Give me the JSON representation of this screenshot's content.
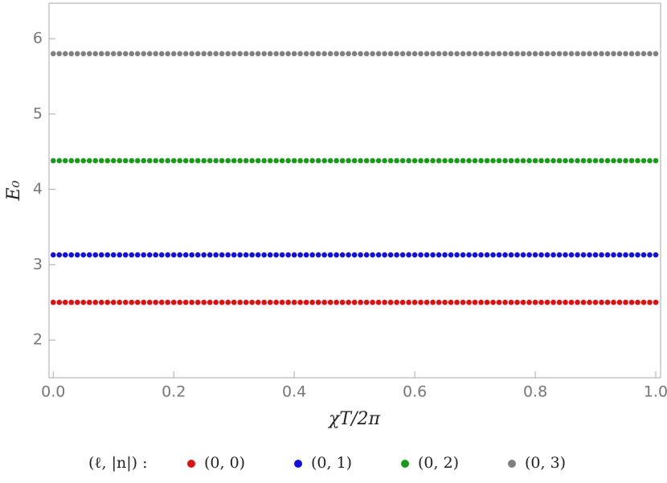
{
  "chart_data": {
    "type": "scatter",
    "xlabel": "χT/2π",
    "ylabel": "E₀",
    "legend_title": "(ℓ, |n|) :",
    "legend_position": "bottom",
    "xlim": [
      -0.007,
      1.008
    ],
    "ylim": [
      1.5,
      6.47
    ],
    "xticks": [
      {
        "value": 0,
        "label": "0.0"
      },
      0.2,
      0.4,
      0.6,
      0.8,
      {
        "value": 1,
        "label": "1.0"
      }
    ],
    "yticks": [
      2,
      3,
      4,
      5,
      6
    ],
    "x": [
      0,
      0.01,
      0.02,
      0.03,
      0.04,
      0.05,
      0.06,
      0.07,
      0.08,
      0.09,
      0.1,
      0.11,
      0.12,
      0.13,
      0.14,
      0.15,
      0.16,
      0.17,
      0.18,
      0.19,
      0.2,
      0.21,
      0.22,
      0.23,
      0.24,
      0.25,
      0.26,
      0.27,
      0.28,
      0.29,
      0.3,
      0.31,
      0.32,
      0.33,
      0.34,
      0.35,
      0.36,
      0.37,
      0.38,
      0.39,
      0.4,
      0.41,
      0.42,
      0.43,
      0.44,
      0.45,
      0.46,
      0.47,
      0.48,
      0.49,
      0.5,
      0.51,
      0.52,
      0.53,
      0.54,
      0.55,
      0.56,
      0.57,
      0.58,
      0.59,
      0.6,
      0.61,
      0.62,
      0.63,
      0.64,
      0.65,
      0.66,
      0.67,
      0.68,
      0.69,
      0.7,
      0.71,
      0.72,
      0.73,
      0.74,
      0.75,
      0.76,
      0.77,
      0.78,
      0.79,
      0.8,
      0.81,
      0.82,
      0.83,
      0.84,
      0.85,
      0.86,
      0.87,
      0.88,
      0.89,
      0.9,
      0.91,
      0.92,
      0.93,
      0.94,
      0.95,
      0.96,
      0.97,
      0.98,
      0.99,
      1
    ],
    "series": [
      {
        "name": "(0, 0)",
        "color": "#e01010",
        "values": [
          2.5,
          2.5,
          2.5,
          2.5,
          2.5,
          2.5,
          2.5,
          2.5,
          2.5,
          2.5,
          2.5,
          2.5,
          2.5,
          2.5,
          2.5,
          2.5,
          2.5,
          2.5,
          2.5,
          2.5,
          2.5,
          2.5,
          2.5,
          2.5,
          2.5,
          2.5,
          2.5,
          2.5,
          2.5,
          2.5,
          2.5,
          2.5,
          2.5,
          2.5,
          2.5,
          2.5,
          2.5,
          2.5,
          2.5,
          2.5,
          2.5,
          2.5,
          2.5,
          2.5,
          2.5,
          2.5,
          2.5,
          2.5,
          2.5,
          2.5,
          2.5,
          2.5,
          2.5,
          2.5,
          2.5,
          2.5,
          2.5,
          2.5,
          2.5,
          2.5,
          2.5,
          2.5,
          2.5,
          2.5,
          2.5,
          2.5,
          2.5,
          2.5,
          2.5,
          2.5,
          2.5,
          2.5,
          2.5,
          2.5,
          2.5,
          2.5,
          2.5,
          2.5,
          2.5,
          2.5,
          2.5,
          2.5,
          2.5,
          2.5,
          2.5,
          2.5,
          2.5,
          2.5,
          2.5,
          2.5,
          2.5,
          2.5,
          2.5,
          2.5,
          2.5,
          2.5,
          2.5,
          2.5,
          2.5,
          2.5,
          2.5
        ]
      },
      {
        "name": "(0, 1)",
        "color": "#1010e0",
        "values": [
          3.13,
          3.13,
          3.13,
          3.13,
          3.13,
          3.13,
          3.13,
          3.13,
          3.13,
          3.13,
          3.13,
          3.13,
          3.13,
          3.13,
          3.13,
          3.13,
          3.13,
          3.13,
          3.13,
          3.13,
          3.13,
          3.13,
          3.13,
          3.13,
          3.13,
          3.13,
          3.13,
          3.13,
          3.13,
          3.13,
          3.13,
          3.13,
          3.13,
          3.13,
          3.13,
          3.13,
          3.13,
          3.13,
          3.13,
          3.13,
          3.13,
          3.13,
          3.13,
          3.13,
          3.13,
          3.13,
          3.13,
          3.13,
          3.13,
          3.13,
          3.13,
          3.13,
          3.13,
          3.13,
          3.13,
          3.13,
          3.13,
          3.13,
          3.13,
          3.13,
          3.13,
          3.13,
          3.13,
          3.13,
          3.13,
          3.13,
          3.13,
          3.13,
          3.13,
          3.13,
          3.13,
          3.13,
          3.13,
          3.13,
          3.13,
          3.13,
          3.13,
          3.13,
          3.13,
          3.13,
          3.13,
          3.13,
          3.13,
          3.13,
          3.13,
          3.13,
          3.13,
          3.13,
          3.13,
          3.13,
          3.13,
          3.13,
          3.13,
          3.13,
          3.13,
          3.13,
          3.13,
          3.13,
          3.13,
          3.13,
          3.13
        ]
      },
      {
        "name": "(0, 2)",
        "color": "#1a9a1a",
        "values": [
          4.38,
          4.38,
          4.38,
          4.38,
          4.38,
          4.38,
          4.38,
          4.38,
          4.38,
          4.38,
          4.38,
          4.38,
          4.38,
          4.38,
          4.38,
          4.38,
          4.38,
          4.38,
          4.38,
          4.38,
          4.38,
          4.38,
          4.38,
          4.38,
          4.38,
          4.38,
          4.38,
          4.38,
          4.38,
          4.38,
          4.38,
          4.38,
          4.38,
          4.38,
          4.38,
          4.38,
          4.38,
          4.38,
          4.38,
          4.38,
          4.38,
          4.38,
          4.38,
          4.38,
          4.38,
          4.38,
          4.38,
          4.38,
          4.38,
          4.38,
          4.38,
          4.38,
          4.38,
          4.38,
          4.38,
          4.38,
          4.38,
          4.38,
          4.38,
          4.38,
          4.38,
          4.38,
          4.38,
          4.38,
          4.38,
          4.38,
          4.38,
          4.38,
          4.38,
          4.38,
          4.38,
          4.38,
          4.38,
          4.38,
          4.38,
          4.38,
          4.38,
          4.38,
          4.38,
          4.38,
          4.38,
          4.38,
          4.38,
          4.38,
          4.38,
          4.38,
          4.38,
          4.38,
          4.38,
          4.38,
          4.38,
          4.38,
          4.38,
          4.38,
          4.38,
          4.38,
          4.38,
          4.38,
          4.38,
          4.38,
          4.38
        ]
      },
      {
        "name": "(0, 3)",
        "color": "#808080",
        "values": [
          5.8,
          5.8,
          5.8,
          5.8,
          5.8,
          5.8,
          5.8,
          5.8,
          5.8,
          5.8,
          5.8,
          5.8,
          5.8,
          5.8,
          5.8,
          5.8,
          5.8,
          5.8,
          5.8,
          5.8,
          5.8,
          5.8,
          5.8,
          5.8,
          5.8,
          5.8,
          5.8,
          5.8,
          5.8,
          5.8,
          5.8,
          5.8,
          5.8,
          5.8,
          5.8,
          5.8,
          5.8,
          5.8,
          5.8,
          5.8,
          5.8,
          5.8,
          5.8,
          5.8,
          5.8,
          5.8,
          5.8,
          5.8,
          5.8,
          5.8,
          5.8,
          5.8,
          5.8,
          5.8,
          5.8,
          5.8,
          5.8,
          5.8,
          5.8,
          5.8,
          5.8,
          5.8,
          5.8,
          5.8,
          5.8,
          5.8,
          5.8,
          5.8,
          5.8,
          5.8,
          5.8,
          5.8,
          5.8,
          5.8,
          5.8,
          5.8,
          5.8,
          5.8,
          5.8,
          5.8,
          5.8,
          5.8,
          5.8,
          5.8,
          5.8,
          5.8,
          5.8,
          5.8,
          5.8,
          5.8,
          5.8,
          5.8,
          5.8,
          5.8,
          5.8,
          5.8,
          5.8,
          5.8,
          5.8,
          5.8,
          5.8
        ]
      }
    ]
  }
}
